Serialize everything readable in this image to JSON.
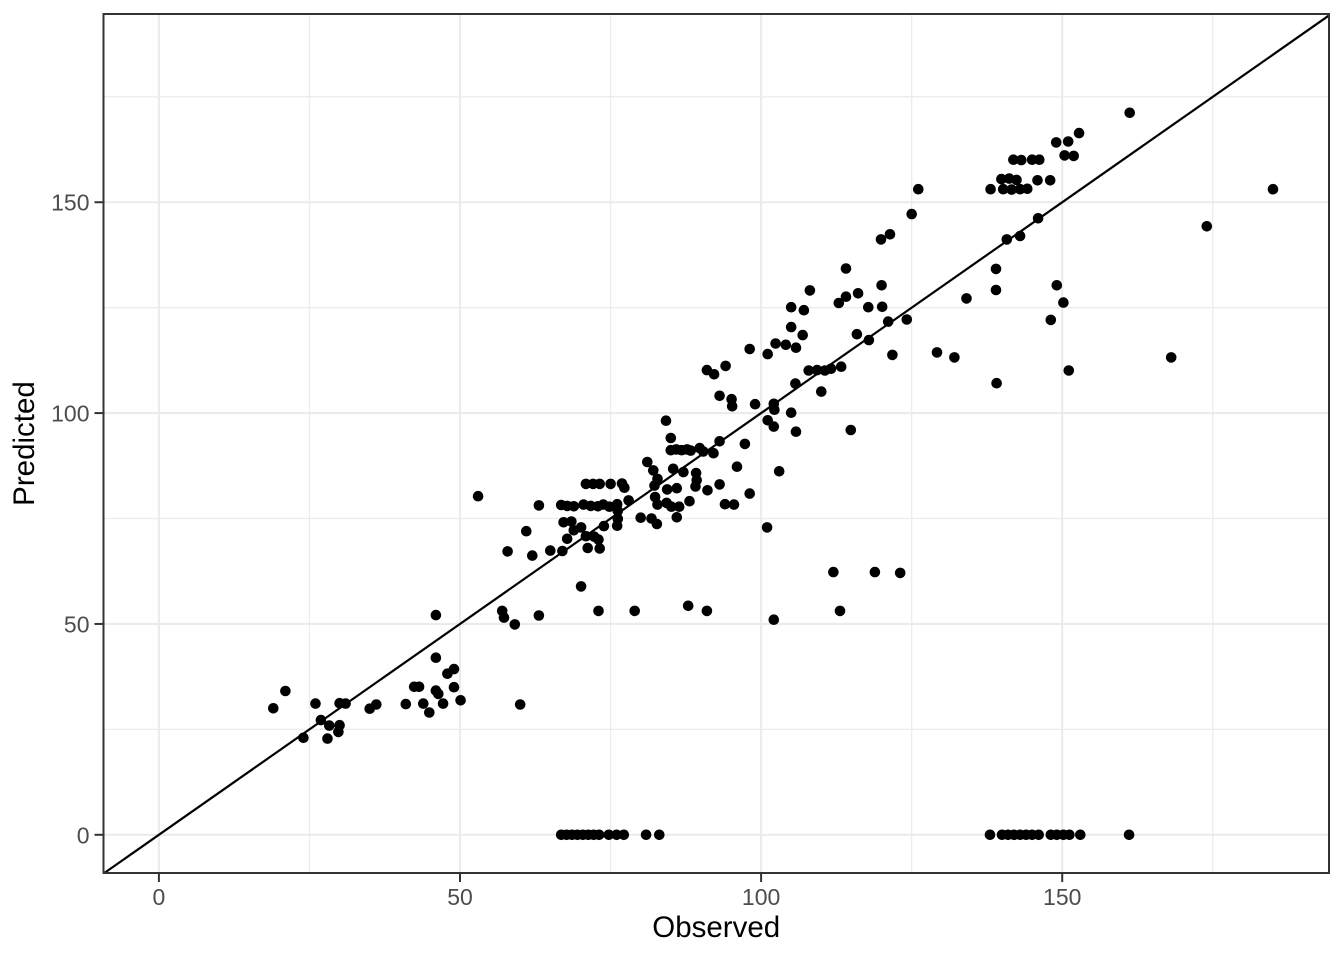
{
  "chart_data": {
    "type": "scatter",
    "title": "",
    "xlabel": "Observed",
    "ylabel": "Predicted",
    "xlim": [
      -9.2,
      194.3
    ],
    "ylim": [
      -9.06,
      194.64
    ],
    "x_major_ticks": [
      0,
      50,
      100,
      150
    ],
    "y_major_ticks": [
      0,
      50,
      100,
      150
    ],
    "x_minor_gridlines": [
      25,
      75,
      125,
      175
    ],
    "y_minor_gridlines": [
      25,
      75,
      125,
      175
    ],
    "grid": "major and minor, light grey on white panel",
    "legend_position": "none",
    "reference_line": {
      "type": "identity",
      "slope": 1,
      "intercept": 0,
      "color": "#000000"
    },
    "series": [
      {
        "name": "points",
        "marker": "circle",
        "marker_color": "#000000",
        "marker_radius_px": 5.3,
        "points": [
          [
            21.0,
            34.1
          ],
          [
            19.0,
            30.0
          ],
          [
            26.0,
            31.1
          ],
          [
            30.0,
            31.2
          ],
          [
            31.0,
            31.1
          ],
          [
            35.0,
            29.9
          ],
          [
            36.1,
            30.9
          ],
          [
            26.9,
            27.2
          ],
          [
            28.3,
            25.9
          ],
          [
            30.0,
            26.0
          ],
          [
            29.8,
            24.4
          ],
          [
            28.0,
            22.8
          ],
          [
            24.0,
            23.0
          ],
          [
            41.0,
            31.0
          ],
          [
            42.4,
            35.1
          ],
          [
            43.2,
            35.1
          ],
          [
            43.9,
            31.1
          ],
          [
            44.9,
            29.0
          ],
          [
            46.0,
            34.2
          ],
          [
            46.4,
            33.4
          ],
          [
            47.2,
            31.1
          ],
          [
            49.0,
            35.0
          ],
          [
            50.1,
            31.9
          ],
          [
            47.9,
            38.2
          ],
          [
            49.0,
            39.3
          ],
          [
            46.0,
            52.1
          ],
          [
            46.0,
            42.0
          ],
          [
            53.0,
            80.3
          ],
          [
            57.9,
            67.2
          ],
          [
            62.0,
            66.2
          ],
          [
            65.0,
            67.4
          ],
          [
            67.0,
            67.3
          ],
          [
            57.0,
            53.1
          ],
          [
            57.3,
            51.5
          ],
          [
            59.1,
            49.9
          ],
          [
            63.1,
            52.0
          ],
          [
            60.0,
            30.9
          ],
          [
            63.1,
            78.1
          ],
          [
            61.0,
            72.0
          ],
          [
            70.1,
            58.9
          ],
          [
            73.0,
            53.1
          ],
          [
            79.0,
            53.1
          ],
          [
            87.9,
            54.3
          ],
          [
            91.0,
            53.1
          ],
          [
            70.9,
            83.2
          ],
          [
            72.1,
            83.2
          ],
          [
            73.2,
            83.2
          ],
          [
            75.0,
            83.2
          ],
          [
            76.9,
            83.3
          ],
          [
            77.3,
            82.3
          ],
          [
            66.8,
            78.2
          ],
          [
            67.8,
            78.0
          ],
          [
            68.9,
            77.9
          ],
          [
            70.5,
            78.3
          ],
          [
            71.7,
            78.0
          ],
          [
            72.9,
            77.9
          ],
          [
            73.8,
            78.3
          ],
          [
            74.8,
            77.8
          ],
          [
            76.1,
            78.4
          ],
          [
            76.2,
            76.8
          ],
          [
            76.2,
            74.9
          ],
          [
            76.1,
            73.3
          ],
          [
            78.0,
            79.3
          ],
          [
            80.0,
            75.2
          ],
          [
            81.8,
            75.0
          ],
          [
            82.7,
            73.7
          ],
          [
            67.2,
            74.1
          ],
          [
            68.5,
            74.3
          ],
          [
            70.1,
            72.9
          ],
          [
            68.9,
            72.2
          ],
          [
            67.8,
            70.2
          ],
          [
            70.9,
            70.8
          ],
          [
            72.3,
            70.7
          ],
          [
            73.0,
            70.0
          ],
          [
            71.2,
            68.0
          ],
          [
            73.2,
            67.9
          ],
          [
            73.9,
            73.2
          ],
          [
            81.1,
            88.4
          ],
          [
            82.1,
            86.4
          ],
          [
            85.4,
            86.8
          ],
          [
            87.1,
            86.0
          ],
          [
            89.2,
            85.8
          ],
          [
            96.0,
            87.3
          ],
          [
            103.0,
            86.2
          ],
          [
            89.3,
            84.1
          ],
          [
            89.1,
            82.6
          ],
          [
            91.1,
            81.7
          ],
          [
            93.1,
            83.1
          ],
          [
            98.1,
            80.9
          ],
          [
            94.0,
            78.4
          ],
          [
            95.5,
            78.3
          ],
          [
            101.0,
            72.9
          ],
          [
            82.8,
            84.4
          ],
          [
            82.3,
            82.8
          ],
          [
            84.4,
            81.9
          ],
          [
            86.0,
            82.2
          ],
          [
            82.4,
            80.1
          ],
          [
            82.8,
            78.3
          ],
          [
            84.3,
            78.7
          ],
          [
            85.1,
            77.8
          ],
          [
            86.4,
            77.8
          ],
          [
            86.0,
            75.3
          ],
          [
            88.1,
            79.1
          ],
          [
            91.0,
            110.2
          ],
          [
            92.2,
            109.2
          ],
          [
            94.1,
            111.2
          ],
          [
            93.1,
            104.1
          ],
          [
            95.1,
            103.3
          ],
          [
            95.2,
            101.6
          ],
          [
            99.0,
            102.1
          ],
          [
            102.1,
            102.2
          ],
          [
            102.2,
            100.8
          ],
          [
            105.7,
            107.0
          ],
          [
            105.0,
            100.1
          ],
          [
            101.1,
            98.3
          ],
          [
            102.1,
            96.8
          ],
          [
            105.8,
            95.6
          ],
          [
            84.2,
            98.2
          ],
          [
            85.0,
            94.1
          ],
          [
            85.0,
            91.2
          ],
          [
            85.9,
            91.4
          ],
          [
            86.8,
            91.2
          ],
          [
            87.7,
            91.4
          ],
          [
            88.3,
            91.1
          ],
          [
            89.8,
            91.7
          ],
          [
            90.4,
            90.9
          ],
          [
            92.1,
            90.5
          ],
          [
            93.1,
            93.3
          ],
          [
            97.3,
            92.7
          ],
          [
            107.9,
            110.1
          ],
          [
            109.3,
            110.2
          ],
          [
            110.6,
            110.1
          ],
          [
            111.6,
            110.5
          ],
          [
            113.3,
            111.0
          ],
          [
            110.0,
            105.1
          ],
          [
            114.9,
            96.0
          ],
          [
            112.0,
            62.3
          ],
          [
            118.9,
            62.3
          ],
          [
            123.1,
            62.1
          ],
          [
            113.1,
            53.1
          ],
          [
            102.1,
            51.0
          ],
          [
            119.9,
            141.2
          ],
          [
            121.4,
            142.4
          ],
          [
            114.1,
            134.3
          ],
          [
            108.1,
            129.1
          ],
          [
            112.9,
            126.1
          ],
          [
            114.1,
            127.6
          ],
          [
            116.1,
            128.4
          ],
          [
            120.0,
            130.3
          ],
          [
            117.8,
            125.1
          ],
          [
            120.1,
            125.2
          ],
          [
            105.0,
            125.1
          ],
          [
            107.1,
            124.4
          ],
          [
            121.1,
            121.7
          ],
          [
            124.2,
            122.2
          ],
          [
            105.0,
            120.4
          ],
          [
            106.9,
            118.5
          ],
          [
            98.1,
            115.2
          ],
          [
            101.1,
            114.0
          ],
          [
            102.4,
            116.5
          ],
          [
            104.1,
            116.2
          ],
          [
            105.8,
            115.5
          ],
          [
            115.9,
            118.7
          ],
          [
            117.9,
            117.3
          ],
          [
            121.8,
            113.8
          ],
          [
            126.1,
            153.1
          ],
          [
            125.0,
            147.2
          ],
          [
            138.1,
            153.1
          ],
          [
            139.9,
            155.5
          ],
          [
            141.2,
            155.6
          ],
          [
            142.4,
            155.3
          ],
          [
            140.2,
            153.1
          ],
          [
            141.6,
            153.0
          ],
          [
            143.0,
            153.1
          ],
          [
            144.2,
            153.2
          ],
          [
            141.9,
            160.1
          ],
          [
            143.2,
            160.0
          ],
          [
            145.0,
            160.1
          ],
          [
            146.2,
            160.1
          ],
          [
            145.9,
            155.2
          ],
          [
            148.0,
            155.2
          ],
          [
            149.0,
            164.2
          ],
          [
            151.0,
            164.4
          ],
          [
            152.8,
            166.4
          ],
          [
            150.4,
            161.1
          ],
          [
            151.9,
            161.0
          ],
          [
            140.8,
            141.2
          ],
          [
            143.0,
            142.0
          ],
          [
            146.0,
            146.2
          ],
          [
            161.2,
            171.2
          ],
          [
            185.0,
            153.1
          ],
          [
            174.0,
            144.3
          ],
          [
            139.0,
            134.2
          ],
          [
            139.0,
            129.2
          ],
          [
            134.1,
            127.2
          ],
          [
            149.1,
            130.3
          ],
          [
            150.2,
            126.2
          ],
          [
            148.1,
            122.1
          ],
          [
            129.2,
            114.4
          ],
          [
            132.1,
            113.2
          ],
          [
            151.1,
            110.1
          ],
          [
            168.1,
            113.2
          ],
          [
            139.1,
            107.1
          ],
          [
            66.8,
            0
          ],
          [
            67.7,
            0
          ],
          [
            68.6,
            0
          ],
          [
            69.5,
            0
          ],
          [
            70.4,
            0
          ],
          [
            71.3,
            0
          ],
          [
            72.2,
            0
          ],
          [
            73.1,
            0
          ],
          [
            74.7,
            0
          ],
          [
            76.0,
            0
          ],
          [
            77.2,
            0
          ],
          [
            80.9,
            0
          ],
          [
            83.1,
            0
          ],
          [
            138.0,
            0
          ],
          [
            140.0,
            0
          ],
          [
            141.0,
            0
          ],
          [
            142.0,
            0
          ],
          [
            143.0,
            0
          ],
          [
            144.0,
            0
          ],
          [
            145.0,
            0
          ],
          [
            146.1,
            0
          ],
          [
            148.1,
            0
          ],
          [
            149.1,
            0
          ],
          [
            150.2,
            0
          ],
          [
            151.2,
            0
          ],
          [
            153.0,
            0
          ],
          [
            161.1,
            0
          ]
        ]
      }
    ],
    "style": {
      "panel_background": "#ffffff",
      "figure_background": "#ffffff",
      "panel_border_color": "#333333",
      "major_grid_color": "#ebebeb",
      "minor_grid_color": "#ececec",
      "tick_color": "#333333",
      "tick_label_color": "#4d4d4d",
      "axis_title_color": "#000000"
    }
  }
}
